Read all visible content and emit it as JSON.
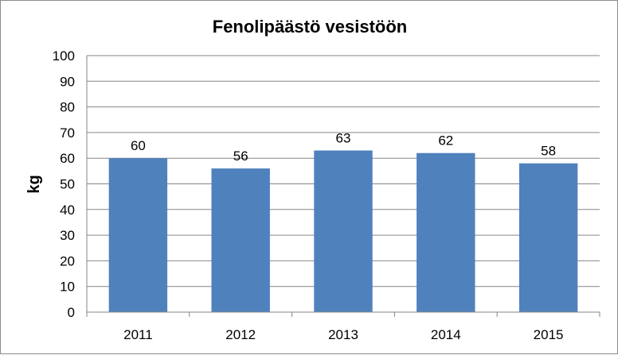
{
  "chart_data": {
    "type": "bar",
    "title": "Fenolipäästö vesistöön",
    "xlabel": "",
    "ylabel": "kg",
    "categories": [
      "2011",
      "2012",
      "2013",
      "2014",
      "2015"
    ],
    "values": [
      60,
      56,
      63,
      62,
      58
    ],
    "data_labels": [
      "60",
      "56",
      "63",
      "62",
      "58"
    ],
    "ylim": [
      0,
      100
    ],
    "yticks": [
      "0",
      "10",
      "20",
      "30",
      "40",
      "50",
      "60",
      "70",
      "80",
      "90",
      "100"
    ],
    "grid": true,
    "legend": "none",
    "bar_color": "#4F81BD",
    "grid_color": "#868686"
  }
}
